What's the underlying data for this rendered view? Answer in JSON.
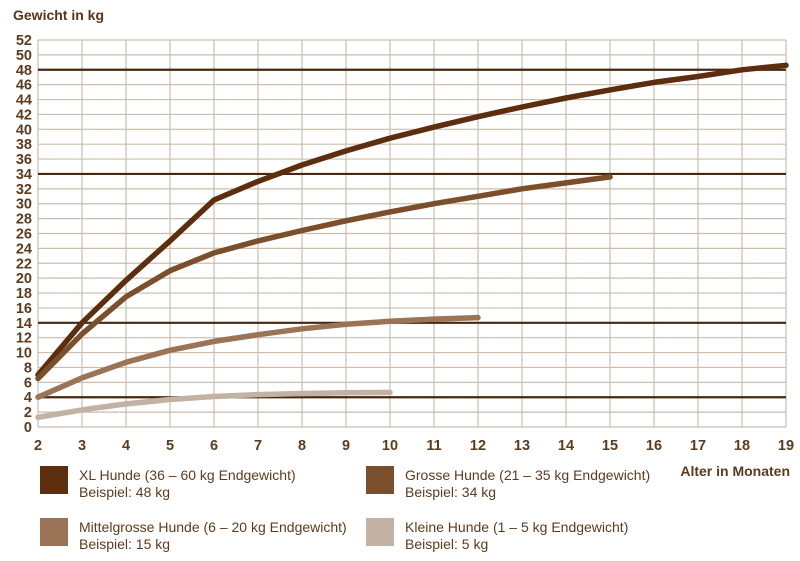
{
  "title": "Gewicht in kg",
  "x_axis_title": "Alter in Monaten",
  "colors": {
    "background": "#ffffff",
    "grid": "#ccbdac",
    "reference_line": "#47270f",
    "text": "#5f3b1d",
    "xl": "#5c2e0e",
    "grosse": "#7b4f2b",
    "mittelgrosse": "#9b7355",
    "kleine": "#c2b2a3"
  },
  "legend": [
    {
      "label": "XL Hunde (36 – 60 kg Endgewicht)",
      "example": "Beispiel: 48 kg",
      "color": "#5c2e0e"
    },
    {
      "label": "Grosse Hunde (21 – 35 kg Endgewicht)",
      "example": "Beispiel: 34 kg",
      "color": "#7b4f2b"
    },
    {
      "label": "Mittelgrosse Hunde (6 – 20 kg Endgewicht)",
      "example": "Beispiel: 15 kg",
      "color": "#9b7355"
    },
    {
      "label": "Kleine Hunde (1 – 5 kg Endgewicht)",
      "example": "Beispiel: 5 kg",
      "color": "#c2b2a3"
    }
  ],
  "chart_data": {
    "type": "line",
    "title": "Gewicht in kg",
    "xlabel": "Alter in Monaten",
    "ylabel": "Gewicht in kg",
    "xlim": [
      2,
      19
    ],
    "ylim": [
      0,
      52
    ],
    "x_ticks": [
      2,
      3,
      4,
      5,
      6,
      7,
      8,
      9,
      10,
      11,
      12,
      13,
      14,
      15,
      16,
      17,
      18,
      19
    ],
    "y_tick_min": 0,
    "y_tick_max": 52,
    "y_tick_step": 2,
    "grid": true,
    "legend_position": "bottom",
    "reference_lines": [
      48,
      34,
      14,
      4
    ],
    "series": [
      {
        "name": "XL Hunde (36 – 60 kg Endgewicht)",
        "example_kg": 48,
        "color": "#5c2e0e",
        "points": [
          [
            2,
            7
          ],
          [
            3,
            14
          ],
          [
            4,
            19.7
          ],
          [
            5,
            25
          ],
          [
            6,
            30.5
          ],
          [
            7,
            33
          ],
          [
            8,
            35.2
          ],
          [
            9,
            37.1
          ],
          [
            10,
            38.8
          ],
          [
            11,
            40.3
          ],
          [
            12,
            41.7
          ],
          [
            13,
            43
          ],
          [
            14,
            44.2
          ],
          [
            15,
            45.3
          ],
          [
            16,
            46.3
          ],
          [
            17,
            47.1
          ],
          [
            18,
            48
          ],
          [
            19,
            48.6
          ]
        ]
      },
      {
        "name": "Grosse Hunde (21 – 35 kg Endgewicht)",
        "example_kg": 34,
        "color": "#7b4f2b",
        "points": [
          [
            2,
            6.5
          ],
          [
            3,
            12.5
          ],
          [
            4,
            17.5
          ],
          [
            5,
            21
          ],
          [
            6,
            23.4
          ],
          [
            7,
            25
          ],
          [
            8,
            26.4
          ],
          [
            9,
            27.7
          ],
          [
            10,
            28.9
          ],
          [
            11,
            30
          ],
          [
            12,
            31
          ],
          [
            13,
            32
          ],
          [
            14,
            32.8
          ],
          [
            15,
            33.6
          ]
        ]
      },
      {
        "name": "Mittelgrosse Hunde (6 – 20 kg Endgewicht)",
        "example_kg": 15,
        "color": "#9b7355",
        "points": [
          [
            2,
            4
          ],
          [
            3,
            6.6
          ],
          [
            4,
            8.7
          ],
          [
            5,
            10.3
          ],
          [
            6,
            11.5
          ],
          [
            7,
            12.4
          ],
          [
            8,
            13.2
          ],
          [
            9,
            13.8
          ],
          [
            10,
            14.2
          ],
          [
            11,
            14.5
          ],
          [
            12,
            14.7
          ]
        ]
      },
      {
        "name": "Kleine Hunde (1 – 5 kg Endgewicht)",
        "example_kg": 5,
        "color": "#c2b2a3",
        "points": [
          [
            2,
            1.3
          ],
          [
            3,
            2.3
          ],
          [
            4,
            3.1
          ],
          [
            5,
            3.7
          ],
          [
            6,
            4.1
          ],
          [
            7,
            4.35
          ],
          [
            8,
            4.5
          ],
          [
            9,
            4.6
          ],
          [
            10,
            4.65
          ]
        ]
      }
    ]
  }
}
